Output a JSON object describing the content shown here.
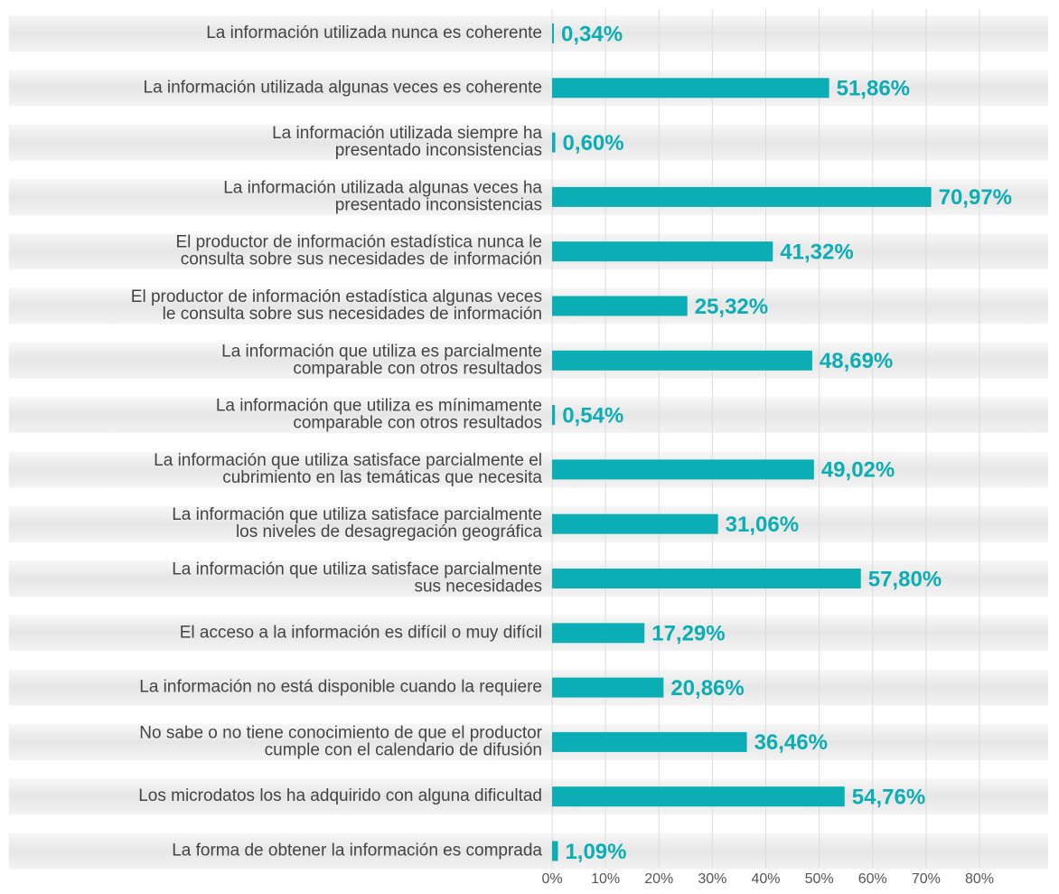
{
  "chart_data": {
    "type": "hbar",
    "categories": [
      "La información utilizada nunca es coherente",
      "La información utilizada algunas veces es coherente",
      "La información utilizada siempre ha\npresentado inconsistencias",
      "La información utilizada algunas veces ha\npresentado inconsistencias",
      "El productor de información estadística nunca le\nconsulta sobre sus necesidades de información",
      "El productor de información estadística algunas veces\nle consulta sobre sus necesidades de información",
      "La información que utiliza es parcialmente\ncomparable con otros resultados",
      "La información que utiliza es mínimamente\ncomparable con otros resultados",
      "La información que utiliza satisface parcialmente el\ncubrimiento en las temáticas que necesita",
      "La información que utiliza satisface parcialmente\nlos niveles de desagregación geográfica",
      "La información que utiliza satisface parcialmente\nsus necesidades",
      "El acceso a la información es difícil o muy difícil",
      "La información no está disponible cuando la requiere",
      "No sabe o no tiene conocimiento de que el productor\ncumple con el calendario de difusión",
      "Los microdatos los ha adquirido con alguna dificultad",
      "La forma de obtener la información es comprada"
    ],
    "values": [
      0.34,
      51.86,
      0.6,
      70.97,
      41.32,
      25.32,
      48.69,
      0.54,
      49.02,
      31.06,
      57.8,
      17.29,
      20.86,
      36.46,
      54.76,
      1.09
    ],
    "value_labels": [
      "0,34%",
      "51,86%",
      "0,60%",
      "70,97%",
      "41,32%",
      "25,32%",
      "48,69%",
      "0,54%",
      "49,02%",
      "31,06%",
      "57,80%",
      "17,29%",
      "20,86%",
      "36,46%",
      "54,76%",
      "1,09%"
    ],
    "color": "#0aaeb4",
    "xlim": [
      0,
      80
    ],
    "xticks": [
      {
        "value": 0,
        "label": "0%"
      },
      {
        "value": 10,
        "label": "10%"
      },
      {
        "value": 20,
        "label": "20%"
      },
      {
        "value": 30,
        "label": "30%"
      },
      {
        "value": 40,
        "label": "40%"
      },
      {
        "value": 50,
        "label": "50%"
      },
      {
        "value": 60,
        "label": "60%"
      },
      {
        "value": 70,
        "label": "70%"
      },
      {
        "value": 80,
        "label": "80%"
      }
    ],
    "grid": true
  }
}
